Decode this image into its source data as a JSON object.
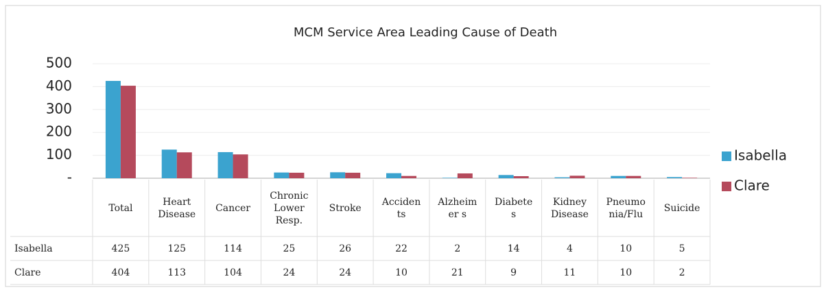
{
  "chart_data": {
    "type": "bar",
    "title": "MCM Service Area Leading Cause of Death",
    "categories": [
      "Total",
      "Heart\nDisease",
      "Cancer",
      "Chronic\nLower\nResp.",
      "Stroke",
      "Acciden\nts",
      "Alzheim\ner s",
      "Diabete\ns",
      "Kidney\nDisease",
      "Pneumo\nnia/Flu",
      "Suicide"
    ],
    "series": [
      {
        "name": "Isabella",
        "color": "#3ba3cf",
        "values": [
          425,
          125,
          114,
          25,
          26,
          22,
          2,
          14,
          4,
          10,
          5
        ]
      },
      {
        "name": "Clare",
        "color": "#b54a5c",
        "values": [
          404,
          113,
          104,
          24,
          24,
          10,
          21,
          9,
          11,
          10,
          2
        ]
      }
    ],
    "ylim": [
      0,
      500
    ],
    "yticks": [
      {
        "value": 0,
        "label": "-"
      },
      100,
      200,
      300,
      400,
      500
    ],
    "grid": true,
    "legend": "right"
  }
}
